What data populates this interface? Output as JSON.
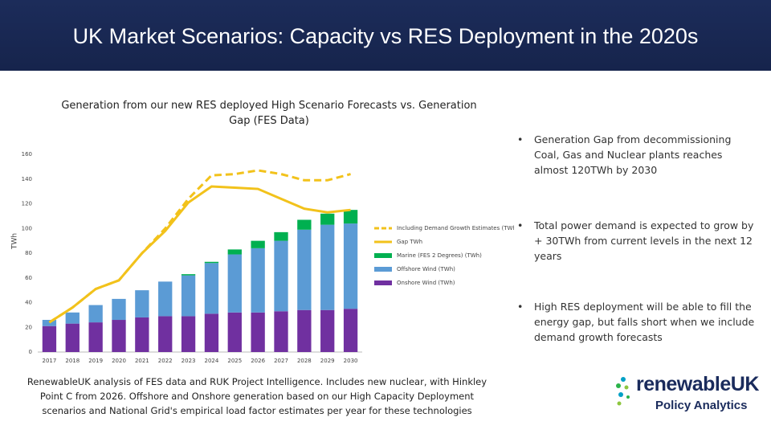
{
  "header": {
    "title": "UK Market Scenarios: Capacity vs RES Deployment in the 2020s"
  },
  "chart_data": {
    "type": "bar",
    "title": "Generation from our new RES deployed High Scenario Forecasts vs. Generation Gap (FES Data)",
    "y_label": "TWh",
    "categories": [
      "2017",
      "2018",
      "2019",
      "2020",
      "2021",
      "2022",
      "2023",
      "2024",
      "2025",
      "2026",
      "2027",
      "2028",
      "2029",
      "2030"
    ],
    "ylim": [
      0,
      160
    ],
    "yticks": [
      0,
      20,
      40,
      60,
      80,
      100,
      120,
      140,
      160
    ],
    "stacked": true,
    "series": [
      {
        "name": "Including Demand Growth Estimates (TWh)",
        "type": "line",
        "dashed": true,
        "color": "#f2c21b",
        "values": [
          24,
          36,
          51,
          58,
          80,
          100,
          124,
          143,
          144,
          147,
          144,
          139,
          139,
          144
        ]
      },
      {
        "name": "Gap TWh",
        "type": "line",
        "dashed": false,
        "color": "#f2c21b",
        "values": [
          24,
          36,
          51,
          58,
          80,
          98,
          121,
          134,
          133,
          132,
          124,
          116,
          113,
          115
        ]
      },
      {
        "name": "Marine (FES 2 Degrees) (TWh)",
        "type": "bar",
        "color": "#00b050",
        "values": [
          0,
          0,
          0,
          0,
          0,
          0,
          1,
          1,
          4,
          6,
          7,
          8,
          9,
          11
        ]
      },
      {
        "name": "Offshore Wind (TWh)",
        "type": "bar",
        "color": "#5b9bd5",
        "values": [
          5,
          9,
          14,
          17,
          22,
          28,
          33,
          41,
          47,
          52,
          57,
          65,
          69,
          69
        ]
      },
      {
        "name": "Onshore Wind (TWh)",
        "type": "bar",
        "color": "#7030a0",
        "values": [
          21,
          23,
          24,
          26,
          28,
          29,
          29,
          31,
          32,
          32,
          33,
          34,
          34,
          35
        ]
      }
    ]
  },
  "bullets": [
    "Generation Gap from decommissioning Coal, Gas and Nuclear plants reaches almost 120TWh by 2030",
    "Total power demand is expected to grow by + 30TWh from current levels in the next 12 years",
    "High RES deployment will be able to fill the energy gap, but falls short when we include demand growth forecasts"
  ],
  "footnote": "RenewableUK analysis of FES data and RUK Project Intelligence. Includes new nuclear, with Hinkley Point C from 2026. Offshore and Onshore generation based on our High Capacity Deployment scenarios and National Grid's empirical load factor estimates per year for these technologies",
  "logo": {
    "name": "renewableUK",
    "subtitle": "Policy Analytics"
  }
}
